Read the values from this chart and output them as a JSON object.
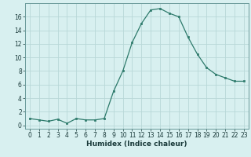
{
  "x": [
    0,
    1,
    2,
    3,
    4,
    5,
    6,
    7,
    8,
    9,
    10,
    11,
    12,
    13,
    14,
    15,
    16,
    17,
    18,
    19,
    20,
    21,
    22,
    23
  ],
  "y": [
    1.0,
    0.8,
    0.6,
    0.9,
    0.3,
    1.0,
    0.8,
    0.8,
    1.0,
    5.0,
    8.0,
    12.2,
    15.0,
    17.0,
    17.2,
    16.5,
    16.0,
    13.0,
    10.5,
    8.5,
    7.5,
    7.0,
    6.5,
    6.5
  ],
  "xlabel": "Humidex (Indice chaleur)",
  "xlim": [
    -0.5,
    23.5
  ],
  "ylim": [
    -0.5,
    18
  ],
  "yticks": [
    0,
    2,
    4,
    6,
    8,
    10,
    12,
    14,
    16
  ],
  "xticks": [
    0,
    1,
    2,
    3,
    4,
    5,
    6,
    7,
    8,
    9,
    10,
    11,
    12,
    13,
    14,
    15,
    16,
    17,
    18,
    19,
    20,
    21,
    22,
    23
  ],
  "line_color": "#2d7a6b",
  "bg_color": "#d8f0f0",
  "grid_color": "#b8d8d8",
  "tick_fontsize": 5.5,
  "xlabel_fontsize": 6.5
}
